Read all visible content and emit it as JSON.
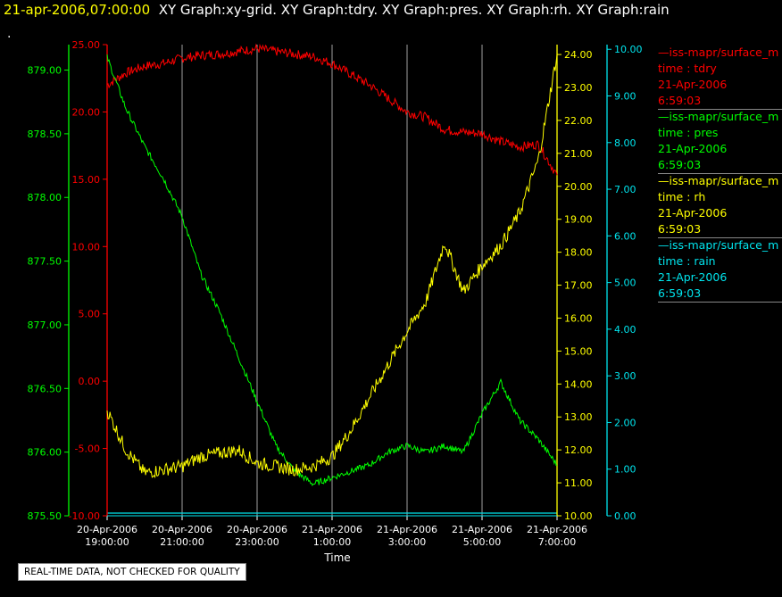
{
  "title": {
    "timestamp": "21-apr-2006,07:00:00",
    "graphs": "XY Graph:xy-grid.  XY Graph:tdry.  XY Graph:pres.  XY Graph:rh.  XY Graph:rain",
    "dot": "."
  },
  "footnote": "REAL-TIME DATA, NOT CHECKED FOR QUALITY",
  "colors": {
    "tdry": "#ff0000",
    "pres": "#00ff00",
    "rh": "#ffff00",
    "rain": "#00e5ee",
    "grid": "#c8c8c8",
    "text": "#ffffff"
  },
  "legend": [
    {
      "series": "—iss-mapr/surface_m",
      "field": "time : tdry",
      "date": "21-Apr-2006",
      "time": "6:59:03",
      "color": "#ff0000"
    },
    {
      "series": "—iss-mapr/surface_m",
      "field": "time : pres",
      "date": "21-Apr-2006",
      "time": "6:59:03",
      "color": "#00ff00"
    },
    {
      "series": "—iss-mapr/surface_m",
      "field": "time : rh",
      "date": "21-Apr-2006",
      "time": "6:59:03",
      "color": "#ffff00"
    },
    {
      "series": "—iss-mapr/surface_m",
      "field": "time : rain",
      "date": "21-Apr-2006",
      "time": "6:59:03",
      "color": "#00e5ee"
    }
  ],
  "chart_data": {
    "type": "line",
    "xlabel": "Time",
    "x_ticks": [
      {
        "date": "20-Apr-2006",
        "time": "19:00:00"
      },
      {
        "date": "20-Apr-2006",
        "time": "21:00:00"
      },
      {
        "date": "20-Apr-2006",
        "time": "23:00:00"
      },
      {
        "date": "21-Apr-2006",
        "time": "1:00:00"
      },
      {
        "date": "21-Apr-2006",
        "time": "3:00:00"
      },
      {
        "date": "21-Apr-2006",
        "time": "5:00:00"
      },
      {
        "date": "21-Apr-2006",
        "time": "7:00:00"
      }
    ],
    "xlim": [
      "20-Apr-2006 19:00:00",
      "21-Apr-2006 7:00:00"
    ],
    "grid": true,
    "axes": {
      "tdry": {
        "range": [
          -10,
          25
        ],
        "ticks": [
          "-10.00",
          "-5.00",
          "0.00",
          "5.00",
          "10.00",
          "15.00",
          "20.00",
          "25.00"
        ],
        "side": "left"
      },
      "pres": {
        "range": [
          875.5,
          879.2
        ],
        "ticks": [
          "875.50",
          "876.00",
          "876.50",
          "877.00",
          "877.50",
          "878.00",
          "878.50",
          "879.00"
        ],
        "side": "left"
      },
      "rh": {
        "range": [
          10,
          24.3
        ],
        "ticks": [
          "10.00",
          "11.00",
          "12.00",
          "13.00",
          "14.00",
          "15.00",
          "16.00",
          "17.00",
          "18.00",
          "19.00",
          "20.00",
          "21.00",
          "22.00",
          "23.00",
          "24.00"
        ],
        "side": "right"
      },
      "rain": {
        "range": [
          0,
          10.1
        ],
        "ticks": [
          "0.00",
          "1.00",
          "2.00",
          "3.00",
          "4.00",
          "5.00",
          "6.00",
          "7.00",
          "8.00",
          "9.00",
          "10.00"
        ],
        "side": "right"
      }
    },
    "series": [
      {
        "key": "tdry",
        "axis": "tdry",
        "x": [
          "20-Apr-2006 19:00",
          "20-Apr-2006 19:30",
          "20-Apr-2006 20:00",
          "20-Apr-2006 20:30",
          "20-Apr-2006 21:00",
          "20-Apr-2006 21:30",
          "20-Apr-2006 22:00",
          "20-Apr-2006 22:30",
          "20-Apr-2006 23:00",
          "20-Apr-2006 23:30",
          "21-Apr-2006 0:00",
          "21-Apr-2006 0:30",
          "21-Apr-2006 1:00",
          "21-Apr-2006 1:30",
          "21-Apr-2006 2:00",
          "21-Apr-2006 2:30",
          "21-Apr-2006 3:00",
          "21-Apr-2006 3:30",
          "21-Apr-2006 4:00",
          "21-Apr-2006 4:30",
          "21-Apr-2006 5:00",
          "21-Apr-2006 5:30",
          "21-Apr-2006 6:00",
          "21-Apr-2006 6:30",
          "21-Apr-2006 7:00"
        ],
        "values": [
          22.0,
          22.9,
          23.4,
          23.6,
          24.0,
          24.2,
          24.3,
          24.5,
          24.7,
          24.5,
          24.3,
          24.1,
          23.6,
          22.8,
          22.0,
          21.0,
          20.0,
          19.6,
          18.7,
          18.5,
          18.4,
          17.8,
          17.4,
          17.6,
          15.3
        ]
      },
      {
        "key": "pres",
        "axis": "pres",
        "x": [
          "20-Apr-2006 19:00",
          "20-Apr-2006 19:30",
          "20-Apr-2006 20:00",
          "20-Apr-2006 20:30",
          "20-Apr-2006 21:00",
          "20-Apr-2006 21:30",
          "20-Apr-2006 22:00",
          "20-Apr-2006 22:30",
          "20-Apr-2006 23:00",
          "20-Apr-2006 23:30",
          "21-Apr-2006 0:00",
          "21-Apr-2006 0:30",
          "21-Apr-2006 1:00",
          "21-Apr-2006 1:30",
          "21-Apr-2006 2:00",
          "21-Apr-2006 2:30",
          "21-Apr-2006 3:00",
          "21-Apr-2006 3:30",
          "21-Apr-2006 4:00",
          "21-Apr-2006 4:30",
          "21-Apr-2006 5:00",
          "21-Apr-2006 5:30",
          "21-Apr-2006 6:00",
          "21-Apr-2006 6:30",
          "21-Apr-2006 7:00"
        ],
        "values": [
          879.1,
          878.7,
          878.4,
          878.15,
          877.85,
          877.4,
          877.1,
          876.75,
          876.4,
          876.05,
          875.85,
          875.75,
          875.8,
          875.85,
          875.9,
          876.0,
          876.05,
          876.0,
          876.05,
          876.0,
          876.3,
          876.55,
          876.25,
          876.1,
          875.9
        ]
      },
      {
        "key": "rh",
        "axis": "rh",
        "x": [
          "20-Apr-2006 19:00",
          "20-Apr-2006 19:30",
          "20-Apr-2006 20:00",
          "20-Apr-2006 20:30",
          "20-Apr-2006 21:00",
          "20-Apr-2006 21:30",
          "20-Apr-2006 22:00",
          "20-Apr-2006 22:30",
          "20-Apr-2006 23:00",
          "20-Apr-2006 23:30",
          "21-Apr-2006 0:00",
          "21-Apr-2006 0:30",
          "21-Apr-2006 1:00",
          "21-Apr-2006 1:30",
          "21-Apr-2006 2:00",
          "21-Apr-2006 2:30",
          "21-Apr-2006 3:00",
          "21-Apr-2006 3:30",
          "21-Apr-2006 4:00",
          "21-Apr-2006 4:30",
          "21-Apr-2006 5:00",
          "21-Apr-2006 5:30",
          "21-Apr-2006 6:00",
          "21-Apr-2006 6:30",
          "21-Apr-2006 7:00"
        ],
        "values": [
          13.2,
          12.0,
          11.3,
          11.4,
          11.5,
          11.8,
          11.9,
          12.0,
          11.6,
          11.5,
          11.4,
          11.5,
          11.8,
          12.6,
          13.6,
          14.6,
          15.6,
          16.5,
          18.3,
          16.8,
          17.6,
          18.2,
          19.2,
          20.8,
          24.0
        ]
      },
      {
        "key": "rain",
        "axis": "rain",
        "x": [
          "20-Apr-2006 19:00",
          "21-Apr-2006 7:00"
        ],
        "values": [
          0.0,
          0.0
        ]
      }
    ]
  }
}
